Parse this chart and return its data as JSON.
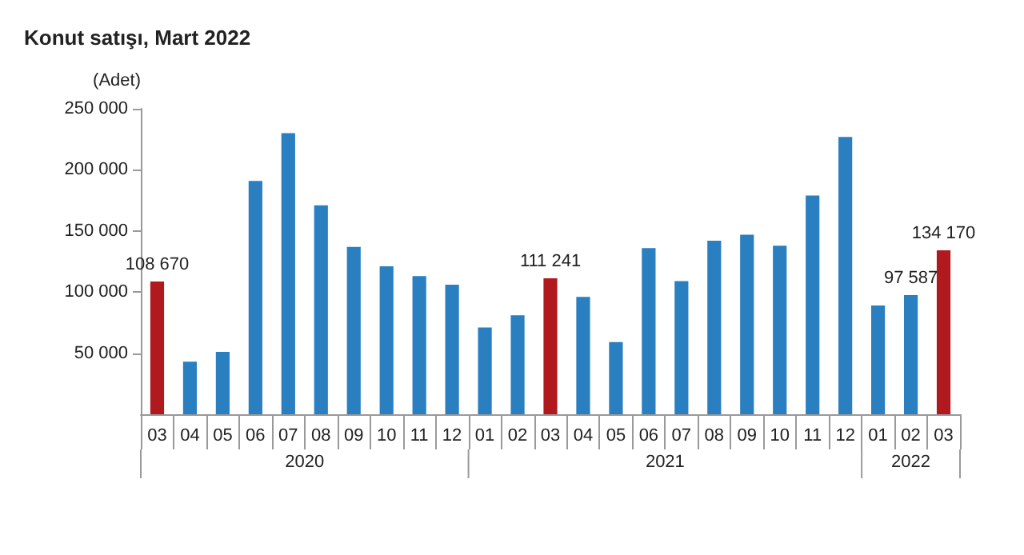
{
  "chart_data": {
    "type": "bar",
    "title": "Konut satışı, Mart 2022",
    "ylabel": "(Adet)",
    "categories": [
      "03",
      "04",
      "05",
      "06",
      "07",
      "08",
      "09",
      "10",
      "11",
      "12",
      "01",
      "02",
      "03",
      "04",
      "05",
      "06",
      "07",
      "08",
      "09",
      "10",
      "11",
      "12",
      "01",
      "02",
      "03"
    ],
    "values": [
      108670,
      43000,
      51000,
      191000,
      230000,
      171000,
      137000,
      121000,
      113000,
      106000,
      71000,
      81000,
      111241,
      96000,
      59000,
      136000,
      109000,
      142000,
      147000,
      138000,
      179000,
      227000,
      89000,
      97587,
      134170
    ],
    "colors": [
      "#b0191e",
      "#2a7fc1",
      "#2a7fc1",
      "#2a7fc1",
      "#2a7fc1",
      "#2a7fc1",
      "#2a7fc1",
      "#2a7fc1",
      "#2a7fc1",
      "#2a7fc1",
      "#2a7fc1",
      "#2a7fc1",
      "#b0191e",
      "#2a7fc1",
      "#2a7fc1",
      "#2a7fc1",
      "#2a7fc1",
      "#2a7fc1",
      "#2a7fc1",
      "#2a7fc1",
      "#2a7fc1",
      "#2a7fc1",
      "#2a7fc1",
      "#2a7fc1",
      "#b0191e"
    ],
    "value_labels": [
      "108 670",
      null,
      null,
      null,
      null,
      null,
      null,
      null,
      null,
      null,
      null,
      null,
      "111 241",
      null,
      null,
      null,
      null,
      null,
      null,
      null,
      null,
      null,
      null,
      "97 587",
      "134 170"
    ],
    "annotations": [
      "2020",
      "2021",
      "2022"
    ],
    "ylim": [
      0,
      250000
    ],
    "yticks": [
      {
        "value": 50000,
        "label": "50 000"
      },
      {
        "value": 100000,
        "label": "100 000"
      },
      {
        "value": 150000,
        "label": "150 000"
      },
      {
        "value": 200000,
        "label": "200 000"
      },
      {
        "value": 250000,
        "label": "250 000"
      }
    ],
    "grid": false
  }
}
